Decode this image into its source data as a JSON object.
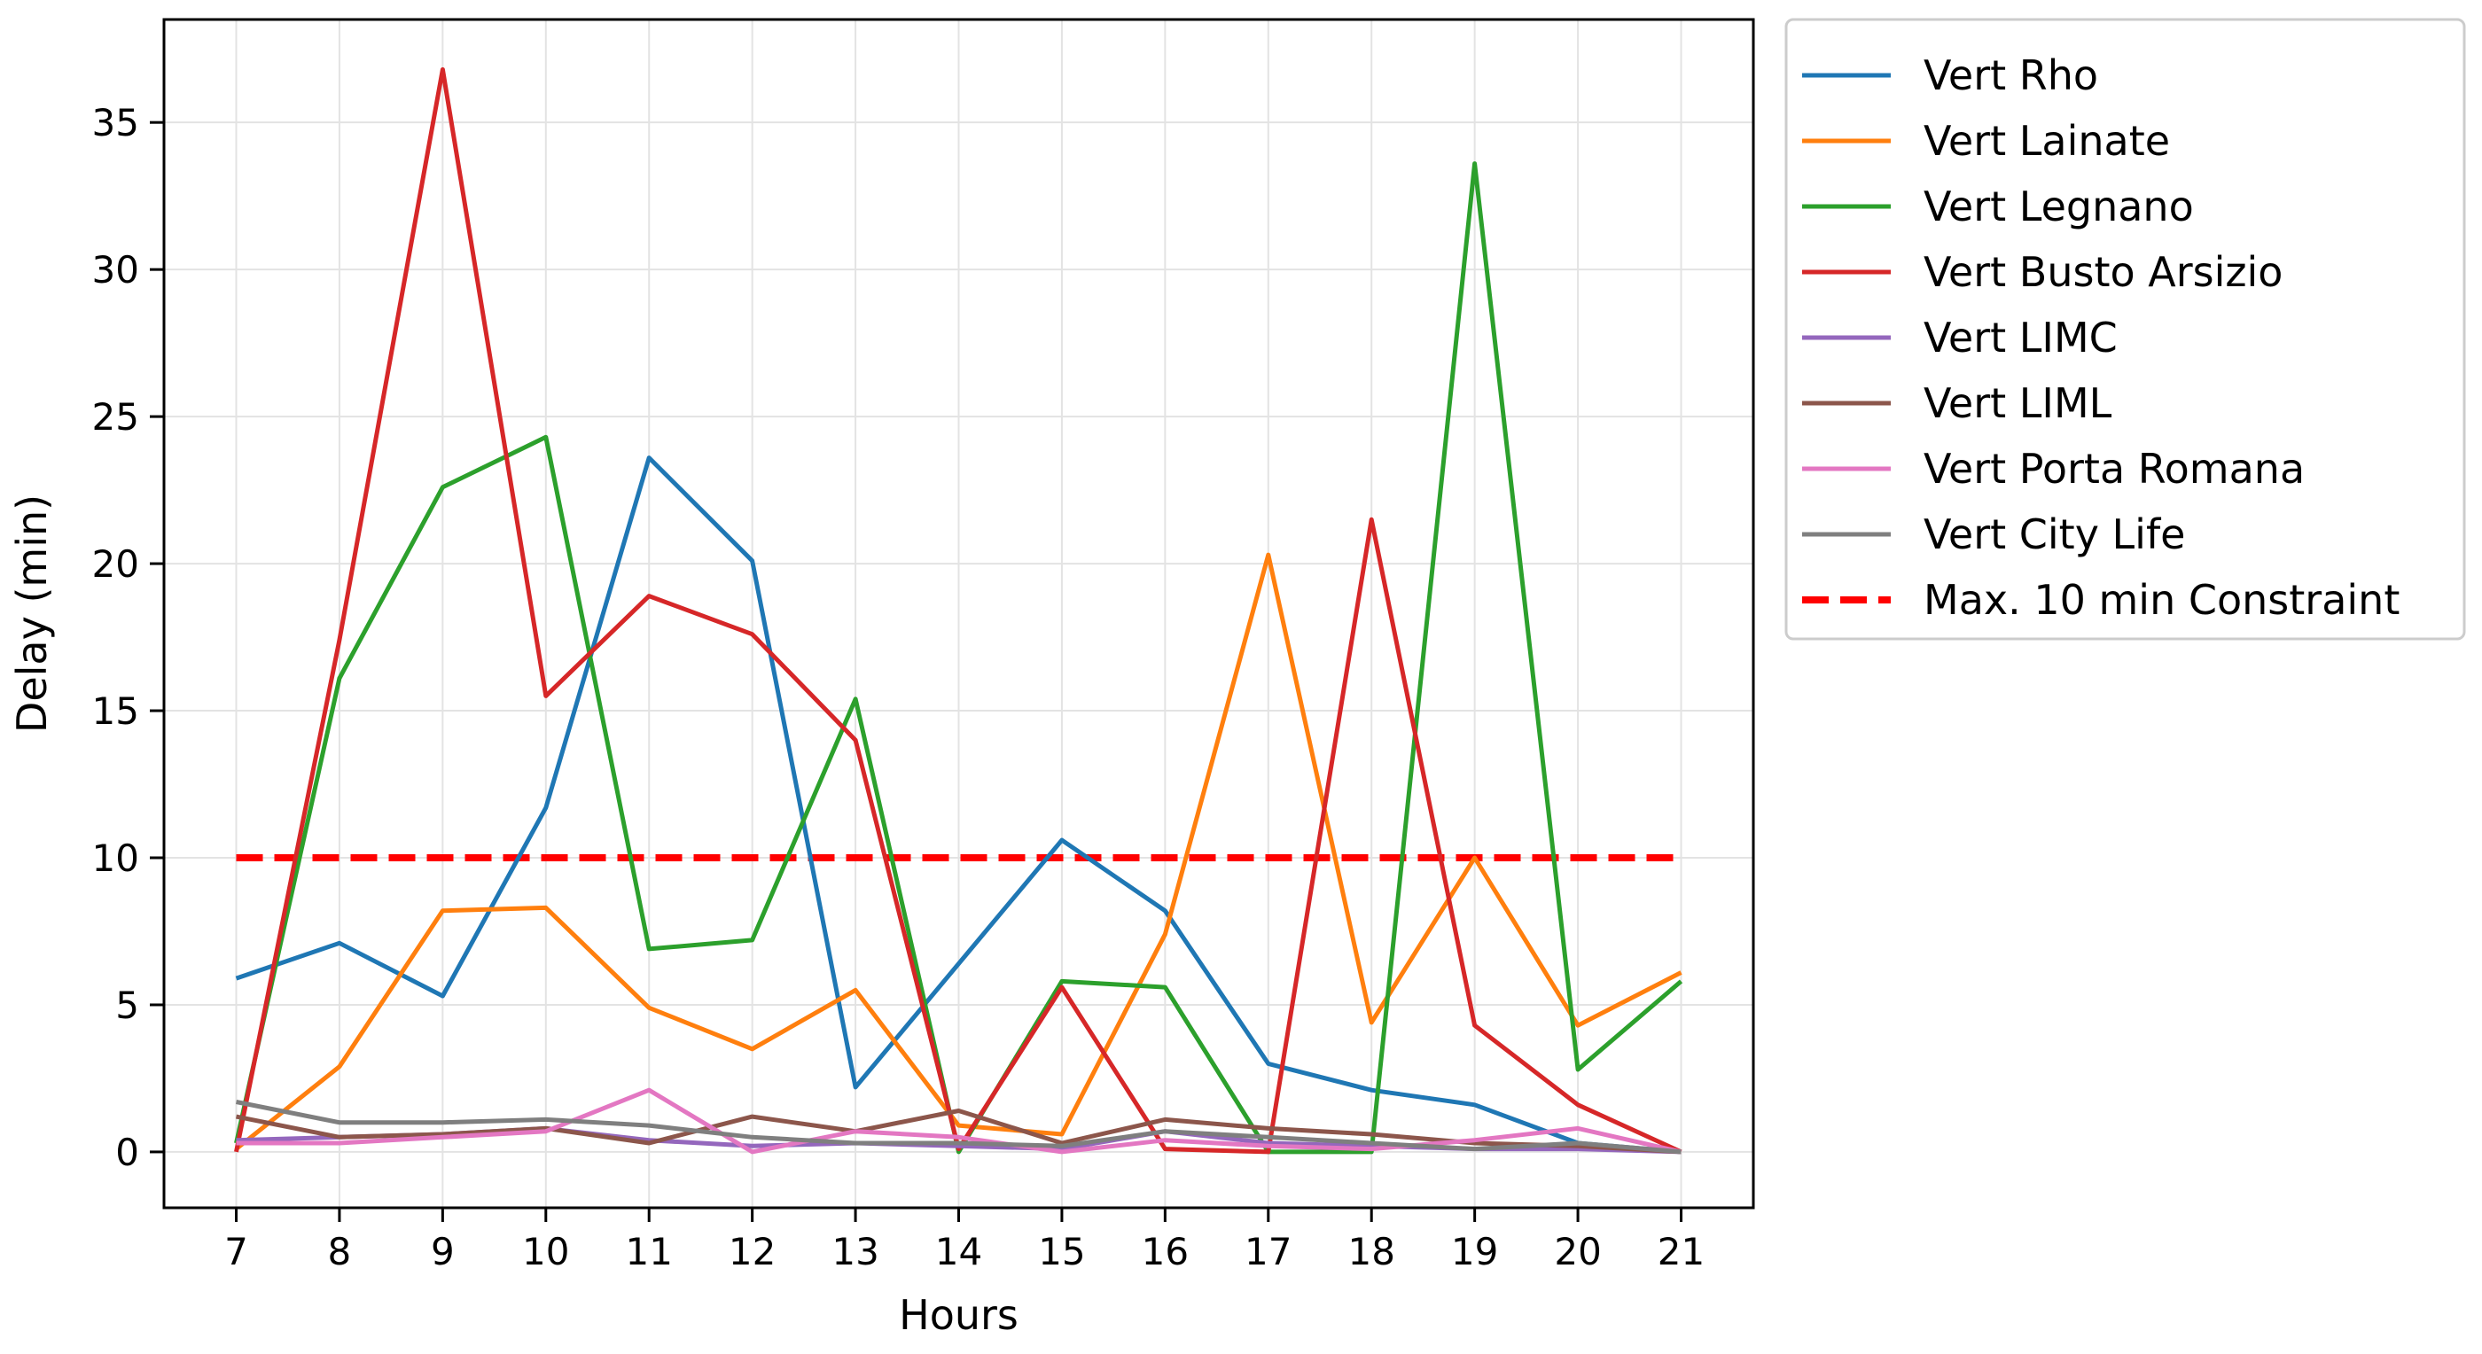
{
  "chart_data": {
    "type": "line",
    "xlabel": "Hours",
    "ylabel": "Delay (min)",
    "x": [
      7,
      8,
      9,
      10,
      11,
      12,
      13,
      14,
      15,
      16,
      17,
      18,
      19,
      20,
      21
    ],
    "xlim": [
      6.3,
      21.7
    ],
    "ylim": [
      -1.9,
      38.5
    ],
    "yticks": [
      0,
      5,
      10,
      15,
      20,
      25,
      30,
      35
    ],
    "grid": true,
    "legend_position": "outside-top-right",
    "series": [
      {
        "name": "Vert Rho",
        "color": "#1f77b4",
        "values": [
          5.9,
          7.1,
          5.3,
          11.7,
          23.6,
          20.1,
          2.2,
          6.4,
          10.6,
          8.2,
          3.0,
          2.1,
          1.6,
          0.3,
          0.0
        ]
      },
      {
        "name": "Vert Lainate",
        "color": "#ff7f0e",
        "values": [
          0.1,
          2.9,
          8.2,
          8.3,
          4.9,
          3.5,
          5.5,
          0.9,
          0.6,
          7.4,
          20.3,
          4.4,
          10.0,
          4.3,
          6.1
        ]
      },
      {
        "name": "Vert Legnano",
        "color": "#2ca02c",
        "values": [
          0.3,
          16.1,
          22.6,
          24.3,
          6.9,
          7.2,
          15.4,
          0.0,
          5.8,
          5.6,
          0.0,
          0.0,
          33.6,
          2.8,
          5.8
        ]
      },
      {
        "name": "Vert Busto Arsizio",
        "color": "#d62728",
        "values": [
          0.0,
          17.4,
          36.8,
          15.5,
          18.9,
          17.6,
          14.0,
          0.1,
          5.6,
          0.1,
          0.0,
          21.5,
          4.3,
          1.6,
          0.0
        ]
      },
      {
        "name": "Vert LIMC",
        "color": "#9467bd",
        "values": [
          0.4,
          0.5,
          0.6,
          0.8,
          0.4,
          0.2,
          0.3,
          0.2,
          0.1,
          0.7,
          0.3,
          0.2,
          0.1,
          0.1,
          0.0
        ]
      },
      {
        "name": "Vert LIML",
        "color": "#8c564b",
        "values": [
          1.2,
          0.5,
          0.6,
          0.8,
          0.3,
          1.2,
          0.7,
          1.4,
          0.3,
          1.1,
          0.8,
          0.6,
          0.3,
          0.2,
          0.0
        ]
      },
      {
        "name": "Vert Porta Romana",
        "color": "#e377c2",
        "values": [
          0.3,
          0.3,
          0.5,
          0.7,
          2.1,
          0.0,
          0.7,
          0.5,
          0.0,
          0.4,
          0.2,
          0.1,
          0.4,
          0.8,
          0.0
        ]
      },
      {
        "name": "Vert City Life",
        "color": "#7f7f7f",
        "values": [
          1.7,
          1.0,
          1.0,
          1.1,
          0.9,
          0.5,
          0.3,
          0.3,
          0.2,
          0.7,
          0.5,
          0.3,
          0.1,
          0.3,
          0.0
        ]
      }
    ],
    "constraint": {
      "name": "Max. 10 min Constraint",
      "color": "#ff0000",
      "value": 10,
      "style": "dashed"
    }
  }
}
